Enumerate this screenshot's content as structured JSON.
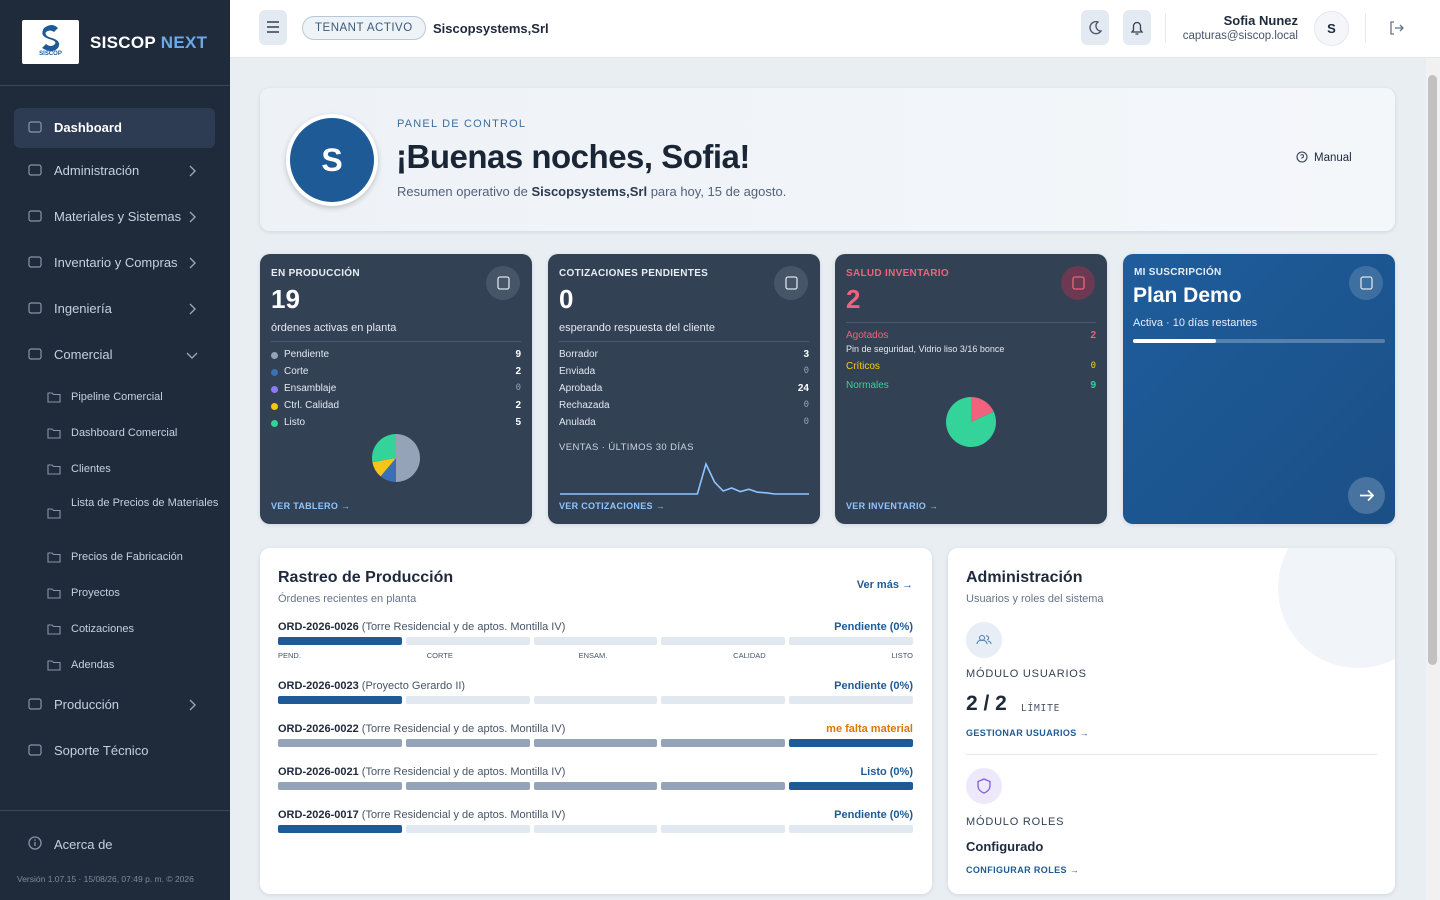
{
  "sidebar": {
    "logo_text": "SISCOP",
    "brand": "SISCOP",
    "brand_accent": "NEXT",
    "nav": [
      {
        "label": "Dashboard",
        "active": true
      },
      {
        "label": "Administración",
        "chevron": "right"
      },
      {
        "label": "Materiales y Sistemas",
        "chevron": "right"
      },
      {
        "label": "Inventario y Compras",
        "chevron": "right"
      },
      {
        "label": "Ingeniería",
        "chevron": "right"
      },
      {
        "label": "Comercial",
        "chevron": "down",
        "children": [
          "Pipeline Comercial",
          "Dashboard Comercial",
          "Clientes",
          "Lista de Precios de Materiales",
          "Precios de Fabricación",
          "Proyectos",
          "Cotizaciones",
          "Adendas"
        ]
      },
      {
        "label": "Producción",
        "chevron": "right"
      },
      {
        "label": "Soporte Técnico"
      }
    ],
    "about": "Acerca de",
    "version": "Versión 1.07.15 · 15/08/26, 07:49 p. m. © 2026"
  },
  "header": {
    "tenant_badge": "TENANT ACTIVO",
    "tenant": "Siscopsystems,Srl",
    "user_name": "Sofia Nunez",
    "user_email": "capturas@siscop.local",
    "avatar": "S"
  },
  "hero": {
    "avatar": "S",
    "eyebrow": "PANEL DE CONTROL",
    "title": "¡Buenas noches, Sofia!",
    "subtitle_pre": "Resumen operativo de",
    "subtitle_company": "Siscopsystems,Srl",
    "subtitle_post": "para hoy, 15 de agosto.",
    "manual": "Manual"
  },
  "cards": [
    {
      "label": "EN PRODUCCIÓN",
      "value": 19,
      "caption": "órdenes activas en planta",
      "items": [
        {
          "name": "Pendiente",
          "value": 9,
          "color": "#94a3b8"
        },
        {
          "name": "Corte",
          "value": 2,
          "color": "#3b6fb6"
        },
        {
          "name": "Ensamblaje",
          "value": 0,
          "color": "#8b7cf6"
        },
        {
          "name": "Ctrl. Calidad",
          "value": 2,
          "color": "#f5c518"
        },
        {
          "name": "Listo",
          "value": 5,
          "color": "#34d399"
        }
      ],
      "link": "VER TABLERO →"
    },
    {
      "label": "COTIZACIONES PENDIENTES",
      "value": 0,
      "caption": "esperando respuesta del cliente",
      "items": [
        {
          "name": "Borrador",
          "value": 3
        },
        {
          "name": "Enviada",
          "value": 0
        },
        {
          "name": "Aprobada",
          "value": 24
        },
        {
          "name": "Rechazada",
          "value": 0
        },
        {
          "name": "Anulada",
          "value": 0
        }
      ],
      "sales_label": "VENTAS · ÚLTIMOS 30 DÍAS",
      "sales_30d": [
        0,
        0,
        0,
        0,
        0,
        0,
        0,
        0,
        0,
        0,
        0,
        0,
        0,
        0,
        0,
        0,
        0,
        5,
        2,
        0.5,
        1,
        0.4,
        0.8,
        0.3,
        0.2,
        0,
        0,
        0,
        0,
        0
      ],
      "link": "VER COTIZACIONES →"
    },
    {
      "label": "SALUD INVENTARIO",
      "value": 2,
      "items": [
        {
          "name": "Agotados",
          "value": 2,
          "color": "#f0627e",
          "detail": "Pin de seguridad, Vidrio liso 3/16 bonce"
        },
        {
          "name": "Críticos",
          "value": 0,
          "color": "#facc15"
        },
        {
          "name": "Normales",
          "value": 9,
          "color": "#34d399"
        }
      ],
      "link": "VER INVENTARIO →"
    },
    {
      "label": "MI SUSCRIPCIÓN",
      "plan": "Plan Demo",
      "status": "Activa · 10 días restantes",
      "progress_pct": 33
    }
  ],
  "tracking": {
    "title": "Rastreo de Producción",
    "subtitle": "Órdenes recientes en planta",
    "more": "Ver más →",
    "stage_labels": [
      "PEND.",
      "CORTE",
      "ENSAM.",
      "CALIDAD",
      "LISTO"
    ],
    "orders": [
      {
        "id": "ORD-2026-0026",
        "project": "(Torre Residencial y de aptos. Montilla IV)",
        "status": "Pendiente (0%)",
        "status_color": "#1d5a96",
        "stage": 0
      },
      {
        "id": "ORD-2026-0023",
        "project": "(Proyecto Gerardo II)",
        "status": "Pendiente (0%)",
        "status_color": "#1d5a96",
        "stage": 0
      },
      {
        "id": "ORD-2026-0022",
        "project": "(Torre Residencial y de aptos. Montilla IV)",
        "status": "me falta material",
        "status_color": "#d97706",
        "stage": 4
      },
      {
        "id": "ORD-2026-0021",
        "project": "(Torre Residencial y de aptos. Montilla IV)",
        "status": "Listo (0%)",
        "status_color": "#1d5a96",
        "stage": 4
      },
      {
        "id": "ORD-2026-0017",
        "project": "(Torre Residencial y de aptos. Montilla IV)",
        "status": "Pendiente (0%)",
        "status_color": "#1d5a96",
        "stage": 0
      }
    ]
  },
  "admin": {
    "title": "Administración",
    "subtitle": "Usuarios y roles del sistema",
    "users_label": "MÓDULO USUARIOS",
    "users_count": "2 / 2",
    "users_limit": "LÍMITE",
    "users_link": "GESTIONAR USUARIOS →",
    "roles_label": "MÓDULO ROLES",
    "roles_status": "Configurado",
    "roles_link": "CONFIGURAR ROLES →"
  }
}
